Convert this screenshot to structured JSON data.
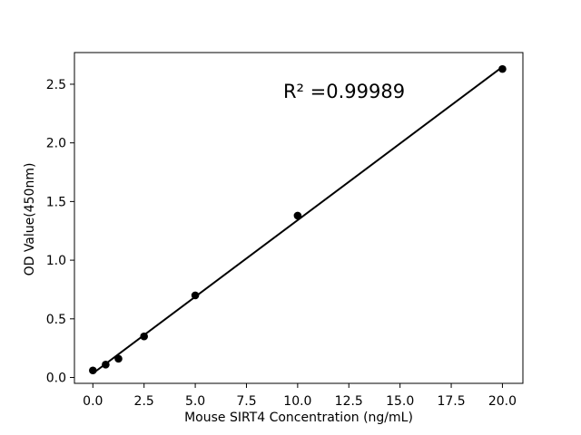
{
  "chart_data": {
    "type": "scatter",
    "title": "",
    "xlabel": "Mouse SIRT4 Concentration (ng/mL)",
    "ylabel": "OD Value(450nm)",
    "annotation": "R² =0.99989",
    "r_squared": 0.99989,
    "x": [
      0,
      0.625,
      1.25,
      2.5,
      5,
      10,
      20
    ],
    "y": [
      0.06,
      0.11,
      0.16,
      0.35,
      0.7,
      1.38,
      2.63
    ],
    "trend_line": {
      "x1": 0,
      "y1": 0.035,
      "x2": 20,
      "y2": 2.648
    },
    "xticks": [
      0,
      2.5,
      5,
      7.5,
      10,
      12.5,
      15,
      17.5,
      20
    ],
    "xtick_labels": [
      "0.0",
      "2.5",
      "5.0",
      "7.5",
      "10.0",
      "12.5",
      "15.0",
      "17.5",
      "20.0"
    ],
    "yticks": [
      0,
      0.5,
      1,
      1.5,
      2,
      2.5
    ],
    "ytick_labels": [
      "0.0",
      "0.5",
      "1.0",
      "1.5",
      "2.0",
      "2.5"
    ],
    "xlim": [
      -0.9,
      21.0
    ],
    "ylim": [
      -0.05,
      2.77
    ],
    "grid": false,
    "legend": "none",
    "marker_color": "#000000",
    "line_color": "#000000",
    "background": "#ffffff"
  }
}
